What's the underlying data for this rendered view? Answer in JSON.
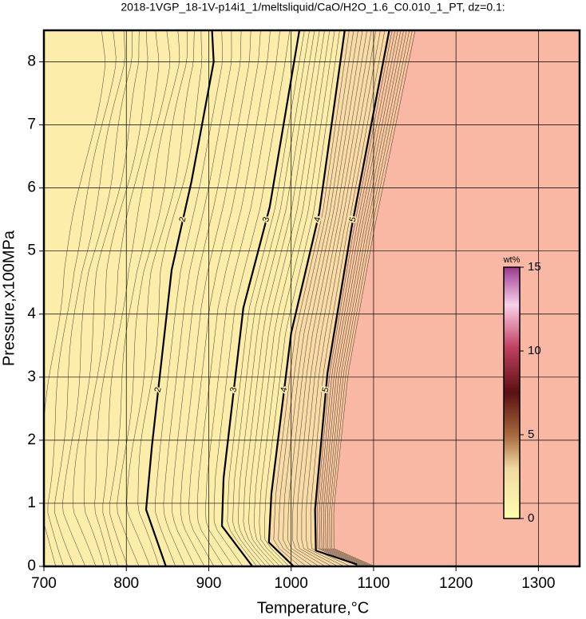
{
  "chart_data": {
    "type": "contour",
    "title": "2018-1VGP_18-1V-p14i1_1/meltsliquid/CaO/H2O_1.6_C0.010_1_PT, dz=0.1:",
    "x_label": "Temperature,°C",
    "y_label": "Pressure,x100MPa",
    "xlim": [
      700,
      1350
    ],
    "ylim": [
      0,
      8.5
    ],
    "xticks": [
      700,
      800,
      900,
      1000,
      1100,
      1200,
      1300
    ],
    "yticks": [
      0,
      1,
      2,
      3,
      4,
      5,
      6,
      7,
      8
    ],
    "grid": true,
    "series": [
      {
        "name": "2",
        "color": "#000000",
        "x": [
          848,
          824,
          831,
          855,
          879,
          906,
          904
        ],
        "y": [
          0,
          0.9,
          1.9,
          4.7,
          6.1,
          8.0,
          8.5
        ]
      },
      {
        "name": "3",
        "color": "#000000",
        "x": [
          953,
          916,
          918,
          942,
          974,
          1010
        ],
        "y": [
          0,
          0.64,
          1.4,
          4.1,
          5.7,
          8.5
        ]
      },
      {
        "name": "4",
        "color": "#000000",
        "x": [
          1003,
          973,
          976,
          1000,
          1034,
          1065
        ],
        "y": [
          0,
          0.38,
          1.15,
          3.7,
          5.6,
          8.5
        ]
      },
      {
        "name": "5",
        "color": "#000000",
        "x": [
          1080,
          1030,
          1029,
          1044,
          1073,
          1119
        ],
        "y": [
          0.03,
          0.25,
          0.9,
          3.06,
          5.35,
          8.5
        ]
      }
    ],
    "colorbar": {
      "label": "wt%",
      "lim": [
        0,
        15
      ],
      "ticks": [
        0,
        5,
        10,
        15
      ]
    }
  }
}
